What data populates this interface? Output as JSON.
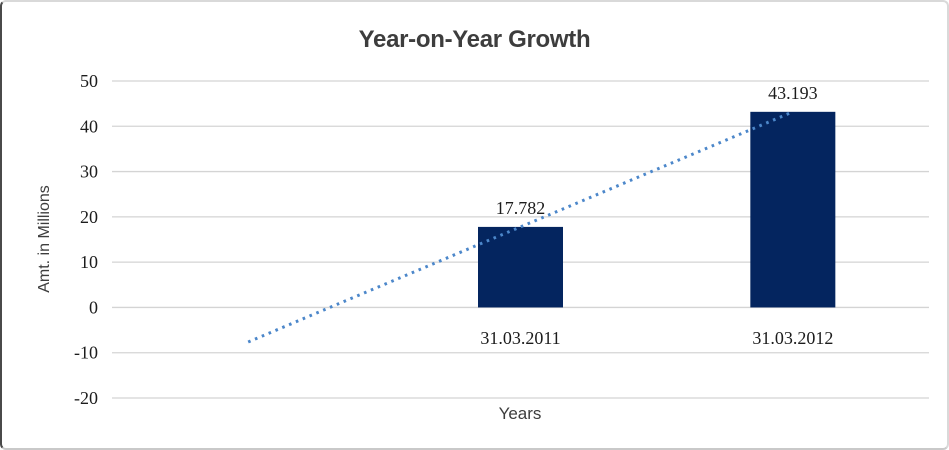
{
  "window": {
    "background": "#ffffff",
    "border_left_color": "#4a4a4a",
    "border_color": "#d9d9d9"
  },
  "chart_data": {
    "type": "bar",
    "title": "Year-on-Year Growth",
    "xlabel": "Years",
    "ylabel": "Amt. in Millions",
    "ylim": [
      -20,
      50
    ],
    "ytick_step": 10,
    "ytick_labels": [
      "50",
      "40",
      "30",
      "20",
      "10",
      "0",
      "-10",
      "-20"
    ],
    "grid": "horizontal",
    "legend": "none",
    "categories": [
      "",
      "31.03.2011",
      "31.03.2012"
    ],
    "values": [
      null,
      17.782,
      43.193
    ],
    "data_labels": [
      "",
      "17.782",
      "43.193"
    ],
    "trendline": {
      "type": "linear",
      "style": "dotted",
      "start_slot": 0,
      "start_value": -7.629,
      "end_slot": 2,
      "end_value": 43.193
    },
    "colors": {
      "bar": "#04255f",
      "trendline": "#4c87ca",
      "gridline": "#d4d4d4",
      "title_text": "#3d3d3d",
      "axis_title_text": "#3d3d3d",
      "label_text": "#1c1c1c"
    }
  }
}
